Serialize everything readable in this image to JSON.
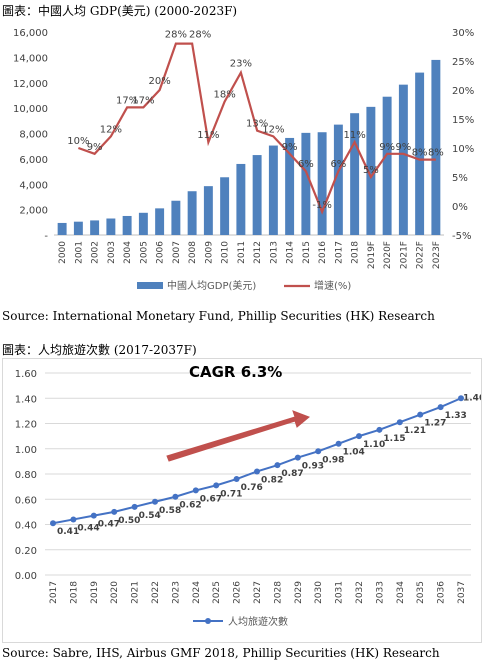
{
  "chart1": {
    "title": "圖表：中國人均 GDP(美元) (2000-2023F)",
    "source": "Source: International Monetary Fund, Phillip Securities (HK) Research"
  },
  "chart2": {
    "title": "圖表：人均旅遊次數 (2017-2037F)",
    "source": "Source: Sabre, IHS, Airbus GMF 2018, Phillip Securities (HK) Research"
  },
  "chart_data": [
    {
      "type": "bar",
      "title": "圖表：中國人均 GDP(美元) (2000-2023F)",
      "categories": [
        "2000",
        "2001",
        "2002",
        "2003",
        "2004",
        "2005",
        "2006",
        "2007",
        "2008",
        "2009",
        "2010",
        "2011",
        "2012",
        "2013",
        "2014",
        "2015",
        "2016",
        "2017",
        "2018",
        "2019F",
        "2020F",
        "2021F",
        "2022F",
        "2023F"
      ],
      "series": [
        {
          "name": "中國人均GDP(美元)",
          "axis": "left",
          "type": "bar",
          "color": "#4f81bd",
          "values": [
            950,
            1050,
            1150,
            1300,
            1500,
            1750,
            2100,
            2700,
            3450,
            3850,
            4550,
            5600,
            6300,
            7050,
            7650,
            8050,
            8100,
            8700,
            9600,
            10100,
            10900,
            11850,
            12800,
            13800
          ]
        },
        {
          "name": "增速(%)",
          "axis": "right",
          "type": "line",
          "color": "#c0504d",
          "values": [
            null,
            10,
            9,
            12,
            17,
            17,
            20,
            28,
            28,
            11,
            18,
            23,
            13,
            12,
            9,
            6,
            -1,
            6,
            11,
            5,
            9,
            9,
            8,
            8
          ],
          "labels": [
            "",
            "10%",
            "9%",
            "12%",
            "17%",
            "17%",
            "20%",
            "28%",
            "28%",
            "11%",
            "18%",
            "23%",
            "13%",
            "12%",
            "9%",
            "6%",
            "-1%",
            "6%",
            "11%",
            "5%",
            "9%",
            "9%",
            "8%",
            "8%"
          ]
        }
      ],
      "ylim_left": [
        0,
        16000
      ],
      "yticks_left": [
        "-",
        "2,000",
        "4,000",
        "6,000",
        "8,000",
        "10,000",
        "12,000",
        "14,000",
        "16,000"
      ],
      "ylim_right": [
        -5,
        30
      ],
      "yticks_right": [
        "-5%",
        "0%",
        "5%",
        "10%",
        "15%",
        "20%",
        "25%",
        "30%"
      ],
      "legend": "bottom",
      "grid": false
    },
    {
      "type": "line",
      "title": "圖表：人均旅遊次數 (2017-2037F)",
      "categories": [
        "2017",
        "2018",
        "2019",
        "2020",
        "2021",
        "2022",
        "2023",
        "2024",
        "2025",
        "2026",
        "2027",
        "2028",
        "2029",
        "2030",
        "2031",
        "2032",
        "2033",
        "2034",
        "2035",
        "2036",
        "2037"
      ],
      "series": [
        {
          "name": "人均旅遊次數",
          "color": "#4472c4",
          "values": [
            0.41,
            0.44,
            0.47,
            0.5,
            0.54,
            0.58,
            0.62,
            0.67,
            0.71,
            0.76,
            0.82,
            0.87,
            0.93,
            0.98,
            1.04,
            1.1,
            1.15,
            1.21,
            1.27,
            1.33,
            1.4
          ],
          "labels": [
            "0.41",
            "0.44",
            "0.47",
            "0.50",
            "0.54",
            "0.58",
            "0.62",
            "0.67",
            "0.71",
            "0.76",
            "0.82",
            "0.87",
            "0.93",
            "0.98",
            "1.04",
            "1.10",
            "1.15",
            "1.21",
            "1.27",
            "1.33",
            "1.40"
          ]
        }
      ],
      "ylim": [
        0,
        1.6
      ],
      "yticks": [
        "0.00",
        "0.20",
        "0.40",
        "0.60",
        "0.80",
        "1.00",
        "1.20",
        "1.40",
        "1.60"
      ],
      "annotation": "CAGR 6.3%",
      "legend": "bottom",
      "grid": true
    }
  ]
}
